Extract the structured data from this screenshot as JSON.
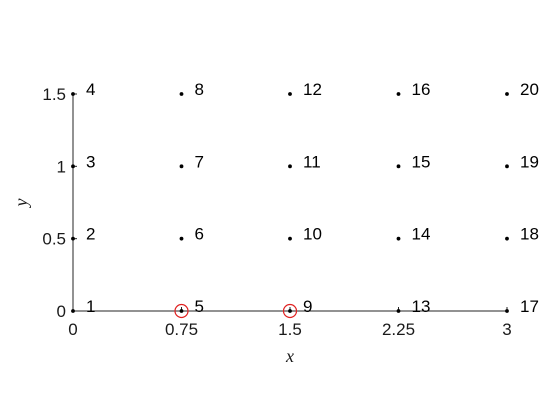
{
  "chart_data": {
    "type": "scatter",
    "xlabel": "x",
    "ylabel": "y",
    "xlim": [
      0,
      3
    ],
    "ylim": [
      0,
      1.5
    ],
    "x_ticks": [
      {
        "value": 0,
        "label": "0"
      },
      {
        "value": 0.75,
        "label": "0.75"
      },
      {
        "value": 1.5,
        "label": "1.5"
      },
      {
        "value": 2.25,
        "label": "2.25"
      },
      {
        "value": 3,
        "label": "3"
      }
    ],
    "y_ticks": [
      {
        "value": 0,
        "label": "0"
      },
      {
        "value": 0.5,
        "label": "0.5"
      },
      {
        "value": 1,
        "label": "1"
      },
      {
        "value": 1.5,
        "label": "1.5"
      }
    ],
    "grid": false,
    "point_color": "#000000",
    "highlight_color": "#e02020",
    "points": [
      {
        "label": "1",
        "x": 0,
        "y": 0
      },
      {
        "label": "2",
        "x": 0,
        "y": 0.5
      },
      {
        "label": "3",
        "x": 0,
        "y": 1
      },
      {
        "label": "4",
        "x": 0,
        "y": 1.5
      },
      {
        "label": "5",
        "x": 0.75,
        "y": 0,
        "highlighted": true
      },
      {
        "label": "6",
        "x": 0.75,
        "y": 0.5
      },
      {
        "label": "7",
        "x": 0.75,
        "y": 1
      },
      {
        "label": "8",
        "x": 0.75,
        "y": 1.5
      },
      {
        "label": "9",
        "x": 1.5,
        "y": 0,
        "highlighted": true
      },
      {
        "label": "10",
        "x": 1.5,
        "y": 0.5
      },
      {
        "label": "11",
        "x": 1.5,
        "y": 1
      },
      {
        "label": "12",
        "x": 1.5,
        "y": 1.5
      },
      {
        "label": "13",
        "x": 2.25,
        "y": 0
      },
      {
        "label": "14",
        "x": 2.25,
        "y": 0.5
      },
      {
        "label": "15",
        "x": 2.25,
        "y": 1
      },
      {
        "label": "16",
        "x": 2.25,
        "y": 1.5
      },
      {
        "label": "17",
        "x": 3,
        "y": 0
      },
      {
        "label": "18",
        "x": 3,
        "y": 0.5
      },
      {
        "label": "19",
        "x": 3,
        "y": 1
      },
      {
        "label": "20",
        "x": 3,
        "y": 1.5
      }
    ]
  }
}
